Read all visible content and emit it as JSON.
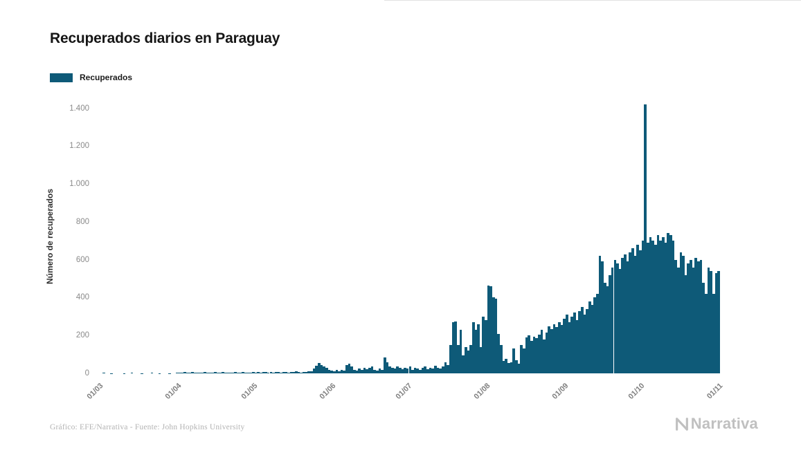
{
  "title": "Recuperados diarios en Paraguay",
  "legend": {
    "label": "Recuperados",
    "color": "#0e5a78"
  },
  "y_axis": {
    "label": "Número de recuperados",
    "ticks": [
      {
        "label": "0",
        "value": 0
      },
      {
        "label": "200",
        "value": 200
      },
      {
        "label": "400",
        "value": 400
      },
      {
        "label": "600",
        "value": 600
      },
      {
        "label": "800",
        "value": 800
      },
      {
        "label": "1.000",
        "value": 1000
      },
      {
        "label": "1.200",
        "value": 1200
      },
      {
        "label": "1.400",
        "value": 1400
      }
    ]
  },
  "x_axis": {
    "ticks": [
      {
        "label": "01/03",
        "day": 0
      },
      {
        "label": "01/04",
        "day": 31
      },
      {
        "label": "01/05",
        "day": 61
      },
      {
        "label": "01/06",
        "day": 92
      },
      {
        "label": "01/07",
        "day": 122
      },
      {
        "label": "01/08",
        "day": 153
      },
      {
        "label": "01/09",
        "day": 184
      },
      {
        "label": "01/10",
        "day": 214
      },
      {
        "label": "01/11",
        "day": 245
      }
    ]
  },
  "footer": {
    "credit": "Gráfico: EFE/Narrativa - Fuente: John Hopkins University"
  },
  "logo": {
    "text": "Narrativa"
  },
  "chart_data": {
    "type": "bar",
    "title": "Recuperados diarios en Paraguay",
    "xlabel": "",
    "ylabel": "Número de recuperados",
    "ylim": [
      0,
      1450
    ],
    "grid": false,
    "legend_position": "top-left",
    "x_frequency": "daily",
    "x_start": "01/03",
    "x_end": "01/11",
    "x_tick_labels": [
      "01/03",
      "01/04",
      "01/05",
      "01/06",
      "01/07",
      "01/08",
      "01/09",
      "01/10",
      "01/11"
    ],
    "series": [
      {
        "name": "Recuperados",
        "color": "#0e5a78",
        "values": [
          0,
          0,
          2,
          0,
          0,
          1,
          0,
          0,
          0,
          0,
          1,
          0,
          0,
          2,
          0,
          0,
          0,
          1,
          0,
          0,
          0,
          2,
          0,
          0,
          1,
          0,
          0,
          0,
          1,
          0,
          0,
          3,
          5,
          2,
          6,
          4,
          3,
          7,
          4,
          2,
          5,
          3,
          6,
          4,
          2,
          5,
          7,
          3,
          4,
          6,
          3,
          5,
          4,
          2,
          6,
          3,
          5,
          7,
          4,
          3,
          5,
          6,
          4,
          8,
          5,
          7,
          9,
          5,
          6,
          4,
          8,
          6,
          5,
          9,
          7,
          5,
          8,
          6,
          10,
          7,
          5,
          8,
          6,
          12,
          10,
          25,
          40,
          55,
          45,
          35,
          30,
          20,
          15,
          10,
          18,
          12,
          20,
          15,
          45,
          50,
          35,
          20,
          15,
          25,
          18,
          30,
          22,
          28,
          35,
          20,
          15,
          25,
          18,
          85,
          60,
          35,
          30,
          25,
          38,
          30,
          22,
          28,
          25,
          35,
          20,
          30,
          25,
          18,
          28,
          35,
          22,
          30,
          25,
          40,
          30,
          25,
          35,
          60,
          45,
          150,
          270,
          275,
          150,
          230,
          95,
          140,
          120,
          150,
          270,
          230,
          260,
          140,
          300,
          280,
          465,
          460,
          400,
          395,
          210,
          150,
          65,
          75,
          55,
          60,
          130,
          70,
          50,
          150,
          130,
          190,
          200,
          170,
          195,
          185,
          205,
          230,
          180,
          215,
          250,
          235,
          260,
          245,
          270,
          255,
          290,
          310,
          270,
          300,
          320,
          280,
          330,
          350,
          310,
          340,
          380,
          360,
          400,
          420,
          620,
          590,
          480,
          460,
          520,
          560,
          600,
          580,
          550,
          610,
          630,
          590,
          640,
          660,
          620,
          680,
          650,
          700,
          1420,
          690,
          720,
          700,
          680,
          730,
          700,
          720,
          690,
          740,
          730,
          700,
          600,
          560,
          640,
          620,
          520,
          580,
          600,
          560,
          610,
          590,
          600,
          480,
          420,
          560,
          540,
          420,
          530,
          540
        ]
      }
    ]
  }
}
